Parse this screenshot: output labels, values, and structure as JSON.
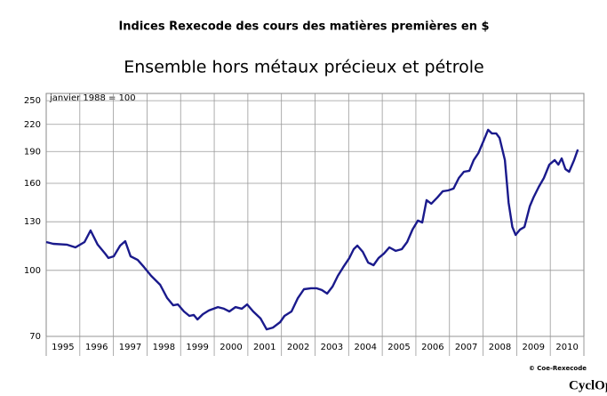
{
  "chart_data": {
    "type": "line",
    "title": "Indices Rexecode des cours des matières premières en $",
    "subtitle": "Ensemble hors métaux précieux et pétrole",
    "annotation": "janvier 1988 = 100",
    "source": "© Coe-Rexecode",
    "brand": "CyclOpe",
    "log_scale": true,
    "grid": true,
    "xlim": [
      1995,
      2011
    ],
    "ylim": [
      70,
      260
    ],
    "yticks": [
      70,
      100,
      130,
      160,
      190,
      220,
      250
    ],
    "xticks": [
      1996,
      1997,
      1998,
      1999,
      2000,
      2001,
      2002,
      2003,
      2004,
      2005,
      2006,
      2007,
      2008,
      2009,
      2010
    ],
    "categories": [
      "1995",
      "1996",
      "1997",
      "1998",
      "1999",
      "2000",
      "2001",
      "2002",
      "2003",
      "2004",
      "2005",
      "2006",
      "2007",
      "2008",
      "2009",
      "2010"
    ],
    "x": [
      1995.0,
      1995.21,
      1995.61,
      1995.87,
      1996.14,
      1996.32,
      1996.53,
      1996.75,
      1996.85,
      1997.01,
      1997.2,
      1997.35,
      1997.51,
      1997.72,
      1997.91,
      1998.12,
      1998.39,
      1998.6,
      1998.78,
      1998.92,
      1999.1,
      1999.26,
      1999.39,
      1999.5,
      1999.66,
      1999.84,
      2000.11,
      2000.29,
      2000.45,
      2000.63,
      2000.82,
      2000.98,
      2001.16,
      2001.38,
      2001.56,
      2001.75,
      2001.96,
      2002.09,
      2002.3,
      2002.49,
      2002.67,
      2002.88,
      2003.04,
      2003.2,
      2003.36,
      2003.52,
      2003.68,
      2003.84,
      2004.02,
      2004.15,
      2004.26,
      2004.42,
      2004.58,
      2004.74,
      2004.89,
      2005.05,
      2005.21,
      2005.4,
      2005.58,
      2005.74,
      2005.9,
      2006.06,
      2006.19,
      2006.32,
      2006.46,
      2006.64,
      2006.8,
      2006.96,
      2007.12,
      2007.28,
      2007.43,
      2007.59,
      2007.72,
      2007.86,
      2008.02,
      2008.15,
      2008.26,
      2008.39,
      2008.49,
      2008.65,
      2008.76,
      2008.87,
      2008.97,
      2009.1,
      2009.23,
      2009.39,
      2009.5,
      2009.66,
      2009.81,
      2009.97,
      2010.13,
      2010.24,
      2010.34,
      2010.45,
      2010.56,
      2010.71,
      2010.82
    ],
    "series": [
      {
        "color": "#1a1a8c",
        "values": [
          116.5,
          115.4,
          114.9,
          113.2,
          116.5,
          124.0,
          114.9,
          109.5,
          106.9,
          107.9,
          114.3,
          117.1,
          107.9,
          105.8,
          101.8,
          97.1,
          92.5,
          86.1,
          82.8,
          83.2,
          80.1,
          78.2,
          78.6,
          76.7,
          78.9,
          80.5,
          82.0,
          81.3,
          80.1,
          82.0,
          81.3,
          83.2,
          80.1,
          77.1,
          72.7,
          73.4,
          75.6,
          78.2,
          80.1,
          86.1,
          90.3,
          90.8,
          90.8,
          89.9,
          88.2,
          91.6,
          97.1,
          101.8,
          106.9,
          112.1,
          114.3,
          110.5,
          104.3,
          102.8,
          106.9,
          109.5,
          113.2,
          111.1,
          112.1,
          116.5,
          124.7,
          130.8,
          129.5,
          146.1,
          143.3,
          148.2,
          153.3,
          154.0,
          155.5,
          164.7,
          170.3,
          171.2,
          181.4,
          188.4,
          201.6,
          213.6,
          209.5,
          209.5,
          204.5,
          181.4,
          144.0,
          126.4,
          121.1,
          124.7,
          126.4,
          141.3,
          148.2,
          157.0,
          164.7,
          177.0,
          181.4,
          177.0,
          183.1,
          172.8,
          170.3,
          181.4,
          192.1
        ]
      }
    ]
  }
}
